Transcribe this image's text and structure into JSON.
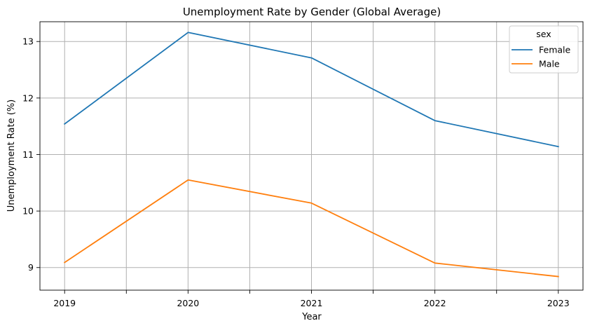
{
  "chart_data": {
    "type": "line",
    "title": "Unemployment Rate by Gender (Global Average)",
    "xlabel": "Year",
    "ylabel": "Unemployment Rate (%)",
    "x": [
      2019,
      2019.5,
      2020,
      2020.5,
      2021,
      2021.5,
      2022,
      2022.5,
      2023
    ],
    "x_tick_labels": [
      "2019",
      "",
      "2020",
      "",
      "2021",
      "",
      "2022",
      "",
      "2023"
    ],
    "y_ticks": [
      9,
      10,
      11,
      12,
      13
    ],
    "y_tick_labels": [
      "9",
      "10",
      "11",
      "12",
      "13"
    ],
    "xlim": [
      2018.8,
      2023.2
    ],
    "ylim": [
      8.6,
      13.35
    ],
    "grid": true,
    "legend": {
      "title": "sex",
      "placement": "top-right"
    },
    "series": [
      {
        "name": "Female",
        "color": "#1f77b4",
        "x": [
          2019,
          2020,
          2021,
          2022,
          2023
        ],
        "values": [
          11.54,
          13.16,
          12.71,
          11.6,
          11.14
        ]
      },
      {
        "name": "Male",
        "color": "#ff7f0e",
        "x": [
          2019,
          2020,
          2021,
          2022,
          2023
        ],
        "values": [
          9.09,
          10.55,
          10.14,
          9.08,
          8.84
        ]
      }
    ]
  }
}
